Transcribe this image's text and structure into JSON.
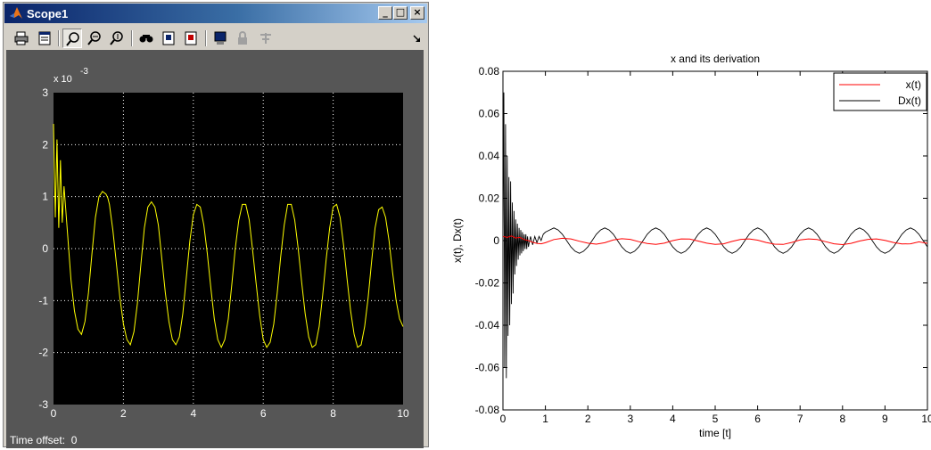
{
  "window": {
    "title": "Scope1",
    "buttons": [
      "minimize",
      "maximize",
      "close"
    ],
    "toolbar": [
      "print-icon",
      "parameters-icon",
      "zoom-icon",
      "zoom-x-icon",
      "zoom-y-icon",
      "autoscale-icon",
      "save-axes-icon",
      "restore-axes-icon",
      "floating-scope-icon",
      "lock-icon",
      "signal-selection-icon"
    ],
    "time_offset_label": "Time offset:",
    "time_offset_value": "0"
  },
  "colors": {
    "scope_bg": "#000000",
    "scope_frame": "#565656",
    "scope_trace": "#ffff00",
    "x_series": "#ff0000",
    "dx_series": "#000000"
  },
  "chart_data": [
    {
      "type": "line",
      "title": "",
      "xlabel": "",
      "ylabel": "",
      "exponent_label": "x 10",
      "exponent_power": "-3",
      "xlim": [
        0,
        10
      ],
      "ylim": [
        -3,
        3
      ],
      "xticks": [
        "0",
        "2",
        "4",
        "6",
        "8",
        "10"
      ],
      "yticks": [
        "3",
        "2",
        "1",
        "0",
        "-1",
        "-2",
        "-3"
      ],
      "grid": true,
      "series": [
        {
          "x": [
            0.0,
            0.05,
            0.1,
            0.15,
            0.2,
            0.25,
            0.3,
            0.4,
            0.5,
            0.6,
            0.7,
            0.8,
            0.9,
            1.0,
            1.1,
            1.2,
            1.3,
            1.4,
            1.5,
            1.55,
            1.6,
            1.7,
            1.8,
            1.9,
            2.0,
            2.1,
            2.2,
            2.3,
            2.4,
            2.5,
            2.6,
            2.7,
            2.8,
            2.9,
            3.0,
            3.1,
            3.2,
            3.3,
            3.4,
            3.5,
            3.6,
            3.7,
            3.8,
            3.9,
            4.0,
            4.1,
            4.2,
            4.3,
            4.4,
            4.5,
            4.6,
            4.7,
            4.8,
            4.9,
            5.0,
            5.1,
            5.2,
            5.3,
            5.4,
            5.5,
            5.6,
            5.7,
            5.8,
            5.9,
            6.0,
            6.1,
            6.2,
            6.3,
            6.4,
            6.5,
            6.6,
            6.7,
            6.8,
            6.9,
            7.0,
            7.1,
            7.2,
            7.3,
            7.4,
            7.5,
            7.6,
            7.7,
            7.8,
            7.9,
            8.0,
            8.1,
            8.2,
            8.3,
            8.4,
            8.5,
            8.6,
            8.7,
            8.8,
            8.9,
            9.0,
            9.1,
            9.2,
            9.3,
            9.4,
            9.5,
            9.6,
            9.7,
            9.8,
            9.9,
            10.0
          ],
          "y": [
            2.4,
            0.6,
            2.1,
            0.4,
            1.7,
            0.5,
            1.2,
            0.3,
            -0.6,
            -1.2,
            -1.55,
            -1.65,
            -1.4,
            -0.85,
            -0.1,
            0.6,
            1.0,
            1.1,
            1.05,
            0.98,
            0.85,
            0.35,
            -0.3,
            -0.95,
            -1.45,
            -1.75,
            -1.85,
            -1.6,
            -1.05,
            -0.3,
            0.4,
            0.8,
            0.9,
            0.8,
            0.45,
            -0.2,
            -0.85,
            -1.4,
            -1.75,
            -1.85,
            -1.7,
            -1.25,
            -0.55,
            0.15,
            0.65,
            0.85,
            0.8,
            0.45,
            -0.1,
            -0.75,
            -1.35,
            -1.75,
            -1.9,
            -1.75,
            -1.35,
            -0.7,
            0.0,
            0.55,
            0.85,
            0.85,
            0.55,
            -0.05,
            -0.7,
            -1.3,
            -1.75,
            -1.9,
            -1.8,
            -1.45,
            -0.85,
            -0.15,
            0.45,
            0.85,
            0.85,
            0.55,
            0.0,
            -0.65,
            -1.25,
            -1.7,
            -1.9,
            -1.85,
            -1.5,
            -0.9,
            -0.2,
            0.4,
            0.8,
            0.85,
            0.6,
            0.05,
            -0.6,
            -1.2,
            -1.65,
            -1.9,
            -1.85,
            -1.5,
            -0.95,
            -0.25,
            0.4,
            0.75,
            0.8,
            0.6,
            0.15,
            -0.45,
            -1.0,
            -1.35,
            -1.5
          ]
        }
      ]
    },
    {
      "type": "line",
      "title": "x and its derivation",
      "xlabel": "time [t]",
      "ylabel": "x(t), Dx(t)",
      "xlim": [
        0,
        10
      ],
      "ylim": [
        -0.08,
        0.08
      ],
      "xticks": [
        "0",
        "1",
        "2",
        "3",
        "4",
        "5",
        "6",
        "7",
        "8",
        "9",
        "10"
      ],
      "yticks": [
        "0.08",
        "0.06",
        "0.04",
        "0.02",
        "0",
        "-0.02",
        "-0.04",
        "-0.06",
        "-0.08"
      ],
      "grid": false,
      "legend_position": "top-right",
      "series": [
        {
          "name": "x(t)",
          "color": "#ff0000",
          "x": [
            0.0,
            0.1,
            0.2,
            0.3,
            0.4,
            0.5,
            0.6,
            0.7,
            0.8,
            0.9,
            1.0,
            1.2,
            1.4,
            1.6,
            1.8,
            2.0,
            2.2,
            2.4,
            2.6,
            2.8,
            3.0,
            3.2,
            3.4,
            3.6,
            3.8,
            4.0,
            4.2,
            4.4,
            4.6,
            4.8,
            5.0,
            5.2,
            5.4,
            5.6,
            5.8,
            6.0,
            6.2,
            6.4,
            6.6,
            6.8,
            7.0,
            7.2,
            7.4,
            7.6,
            7.8,
            8.0,
            8.2,
            8.4,
            8.6,
            8.8,
            9.0,
            9.2,
            9.4,
            9.6,
            9.8,
            10.0
          ],
          "y": [
            0.002,
            0.0015,
            0.0022,
            0.0012,
            0.0015,
            0.0005,
            0.0,
            -0.0008,
            -0.0013,
            -0.0015,
            -0.001,
            0.0005,
            0.0011,
            0.0008,
            -0.0003,
            -0.0012,
            -0.0017,
            -0.001,
            0.0003,
            0.0009,
            0.0006,
            -0.0005,
            -0.0014,
            -0.0018,
            -0.0012,
            0.0,
            0.0008,
            0.0007,
            -0.0002,
            -0.0012,
            -0.0018,
            -0.0015,
            -0.0004,
            0.0006,
            0.0008,
            0.0002,
            -0.0009,
            -0.0017,
            -0.0018,
            -0.0009,
            0.0003,
            0.0008,
            0.0005,
            -0.0005,
            -0.0015,
            -0.0019,
            -0.0013,
            -0.0002,
            0.0006,
            0.0008,
            0.0001,
            -0.0009,
            -0.0016,
            -0.0015,
            -0.0006,
            -0.0013
          ]
        },
        {
          "name": "Dx(t)",
          "color": "#000000",
          "x": [
            0.0,
            0.02,
            0.04,
            0.06,
            0.08,
            0.1,
            0.12,
            0.14,
            0.16,
            0.18,
            0.2,
            0.22,
            0.24,
            0.26,
            0.28,
            0.3,
            0.32,
            0.34,
            0.36,
            0.38,
            0.4,
            0.42,
            0.44,
            0.46,
            0.48,
            0.5,
            0.52,
            0.54,
            0.56,
            0.58,
            0.6,
            0.65,
            0.7,
            0.75,
            0.8,
            0.85,
            0.9,
            0.95,
            1.0,
            1.1,
            1.2,
            1.3,
            1.4,
            1.5,
            1.6,
            1.7,
            1.8,
            1.9,
            2.0,
            2.1,
            2.2,
            2.3,
            2.4,
            2.5,
            2.6,
            2.7,
            2.8,
            2.9,
            3.0,
            3.1,
            3.2,
            3.3,
            3.4,
            3.5,
            3.6,
            3.7,
            3.8,
            3.9,
            4.0,
            4.1,
            4.2,
            4.3,
            4.4,
            4.5,
            4.6,
            4.7,
            4.8,
            4.9,
            5.0,
            5.1,
            5.2,
            5.3,
            5.4,
            5.5,
            5.6,
            5.7,
            5.8,
            5.9,
            6.0,
            6.1,
            6.2,
            6.3,
            6.4,
            6.5,
            6.6,
            6.7,
            6.8,
            6.9,
            7.0,
            7.1,
            7.2,
            7.3,
            7.4,
            7.5,
            7.6,
            7.7,
            7.8,
            7.9,
            8.0,
            8.1,
            8.2,
            8.3,
            8.4,
            8.5,
            8.6,
            8.7,
            8.8,
            8.9,
            9.0,
            9.1,
            9.2,
            9.3,
            9.4,
            9.5,
            9.6,
            9.7,
            9.8,
            9.9,
            10.0
          ],
          "y": [
            0.0,
            0.07,
            -0.06,
            0.055,
            -0.065,
            0.04,
            -0.045,
            0.03,
            -0.04,
            0.028,
            -0.03,
            0.018,
            -0.025,
            0.014,
            -0.016,
            0.01,
            -0.012,
            0.008,
            -0.009,
            0.006,
            -0.007,
            0.005,
            -0.006,
            0.004,
            -0.005,
            0.003,
            -0.004,
            0.003,
            -0.004,
            0.002,
            -0.003,
            0.002,
            -0.002,
            0.002,
            -0.001,
            0.002,
            0.0,
            0.003,
            0.004,
            0.005,
            0.006,
            0.005,
            0.003,
            0.0,
            -0.003,
            -0.005,
            -0.006,
            -0.005,
            -0.003,
            0.0,
            0.003,
            0.005,
            0.006,
            0.005,
            0.003,
            0.0,
            -0.003,
            -0.005,
            -0.006,
            -0.005,
            -0.003,
            0.0,
            0.003,
            0.005,
            0.006,
            0.005,
            0.003,
            0.0,
            -0.003,
            -0.005,
            -0.006,
            -0.005,
            -0.003,
            0.0,
            0.003,
            0.005,
            0.006,
            0.005,
            0.003,
            0.0,
            -0.003,
            -0.005,
            -0.006,
            -0.005,
            -0.003,
            0.0,
            0.003,
            0.005,
            0.006,
            0.005,
            0.003,
            0.0,
            -0.003,
            -0.005,
            -0.006,
            -0.005,
            -0.003,
            0.0,
            0.003,
            0.005,
            0.006,
            0.005,
            0.003,
            0.0,
            -0.003,
            -0.005,
            -0.006,
            -0.005,
            -0.003,
            0.0,
            0.003,
            0.005,
            0.006,
            0.005,
            0.003,
            0.0,
            -0.003,
            -0.005,
            -0.006,
            -0.005,
            -0.003,
            0.0,
            0.003,
            0.005,
            0.006,
            0.005,
            0.003,
            0.0,
            -0.003
          ]
        }
      ]
    }
  ]
}
